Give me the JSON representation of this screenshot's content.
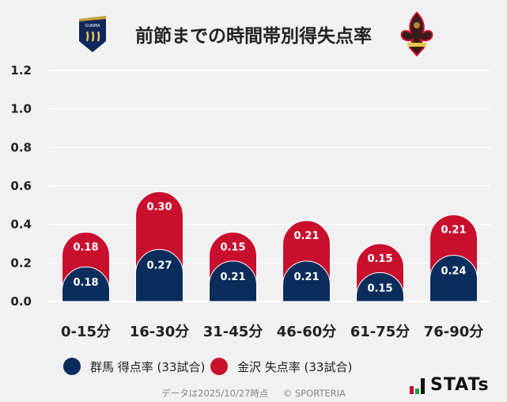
{
  "title": "前節までの時間帯別得失点率",
  "teams": {
    "home_logo": "GUNMA",
    "away_logo": "金沢"
  },
  "legend": [
    {
      "label": "群馬 得点率 (33試合)",
      "color": "#0b2d5c"
    },
    {
      "label": "金沢 失点率 (33試合)",
      "color": "#c8102e"
    }
  ],
  "footer": {
    "date": "データは2025/10/27時点",
    "copyright": "© SPORTERIA"
  },
  "brand": "STATs",
  "chart_data": {
    "type": "bar",
    "stacked": true,
    "categories": [
      "0-15分",
      "16-30分",
      "31-45分",
      "46-60分",
      "61-75分",
      "76-90分"
    ],
    "series": [
      {
        "name": "群馬 得点率 (33試合)",
        "color": "#0b2d5c",
        "values": [
          0.18,
          0.27,
          0.21,
          0.21,
          0.15,
          0.24
        ]
      },
      {
        "name": "金沢 失点率 (33試合)",
        "color": "#c8102e",
        "values": [
          0.18,
          0.3,
          0.15,
          0.21,
          0.15,
          0.21
        ]
      }
    ],
    "ylim": [
      0,
      1.2
    ],
    "yticks": [
      "0.0",
      "0.2",
      "0.4",
      "0.6",
      "0.8",
      "1.0",
      "1.2"
    ],
    "grid": true,
    "legend_position": "bottom"
  }
}
